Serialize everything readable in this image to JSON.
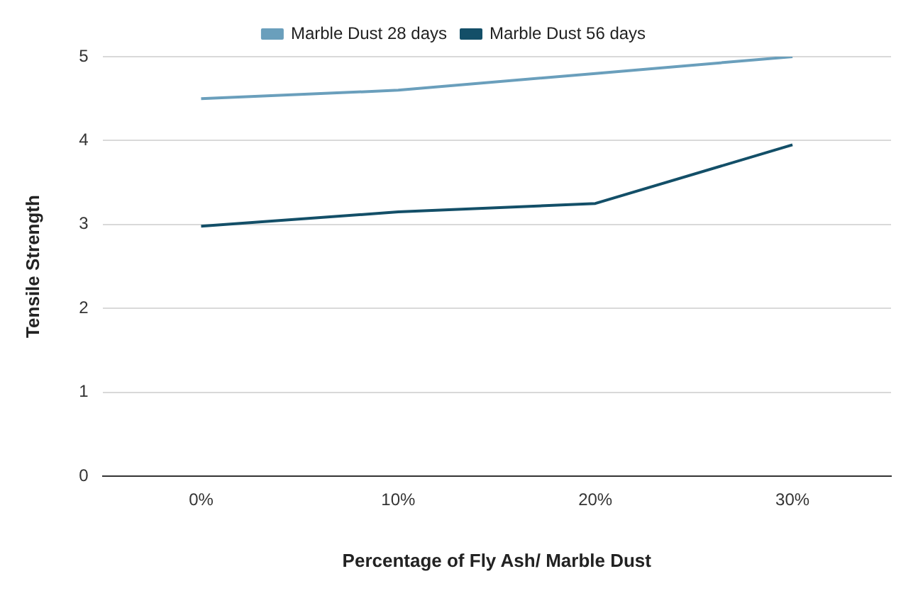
{
  "chart_data": {
    "type": "line",
    "xlabel": "Percentage of Fly Ash/ Marble Dust",
    "ylabel": "Tensile Strength",
    "categories": [
      "0%",
      "10%",
      "20%",
      "30%"
    ],
    "series": [
      {
        "name": "Marble Dust 28 days",
        "color": "#6a9fbc",
        "values": [
          4.5,
          4.6,
          4.8,
          5.0
        ]
      },
      {
        "name": "Marble Dust 56 days",
        "color": "#134f68",
        "values": [
          2.98,
          3.15,
          3.25,
          3.95
        ]
      }
    ],
    "ylim": [
      0,
      5
    ],
    "yticks": [
      0,
      1,
      2,
      3,
      4,
      5
    ],
    "grid": "y",
    "legend": "top",
    "marker": "none"
  }
}
